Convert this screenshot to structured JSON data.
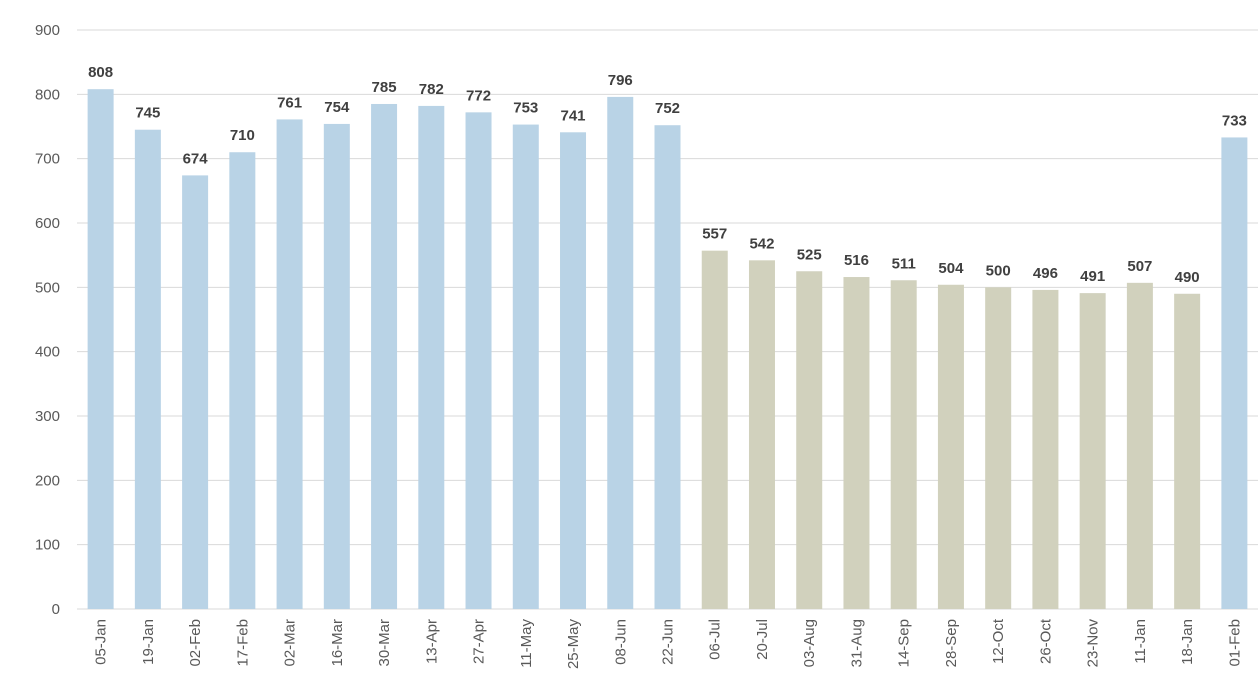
{
  "chart_data": {
    "type": "bar",
    "title": "",
    "xlabel": "",
    "ylabel": "",
    "categories": [
      "05-Jan",
      "19-Jan",
      "02-Feb",
      "17-Feb",
      "02-Mar",
      "16-Mar",
      "30-Mar",
      "13-Apr",
      "27-Apr",
      "11-May",
      "25-May",
      "08-Jun",
      "22-Jun",
      "06-Jul",
      "20-Jul",
      "03-Aug",
      "31-Aug",
      "14-Sep",
      "28-Sep",
      "12-Oct",
      "26-Oct",
      "23-Nov",
      "11-Jan",
      "18-Jan",
      "01-Feb"
    ],
    "values": [
      808,
      745,
      674,
      710,
      761,
      754,
      785,
      782,
      772,
      753,
      741,
      796,
      752,
      557,
      542,
      525,
      516,
      511,
      504,
      500,
      496,
      491,
      507,
      490,
      733
    ],
    "bar_colors": [
      "#b9d3e6",
      "#b9d3e6",
      "#b9d3e6",
      "#b9d3e6",
      "#b9d3e6",
      "#b9d3e6",
      "#b9d3e6",
      "#b9d3e6",
      "#b9d3e6",
      "#b9d3e6",
      "#b9d3e6",
      "#b9d3e6",
      "#b9d3e6",
      "#d1d1bd",
      "#d1d1bd",
      "#d1d1bd",
      "#d1d1bd",
      "#d1d1bd",
      "#d1d1bd",
      "#d1d1bd",
      "#d1d1bd",
      "#d1d1bd",
      "#d1d1bd",
      "#d1d1bd",
      "#b9d3e6"
    ],
    "ylim": [
      0,
      900
    ],
    "yticks": [
      0,
      100,
      200,
      300,
      400,
      500,
      600,
      700,
      800,
      900
    ],
    "grid": true,
    "data_labels": true,
    "legend": "none"
  }
}
